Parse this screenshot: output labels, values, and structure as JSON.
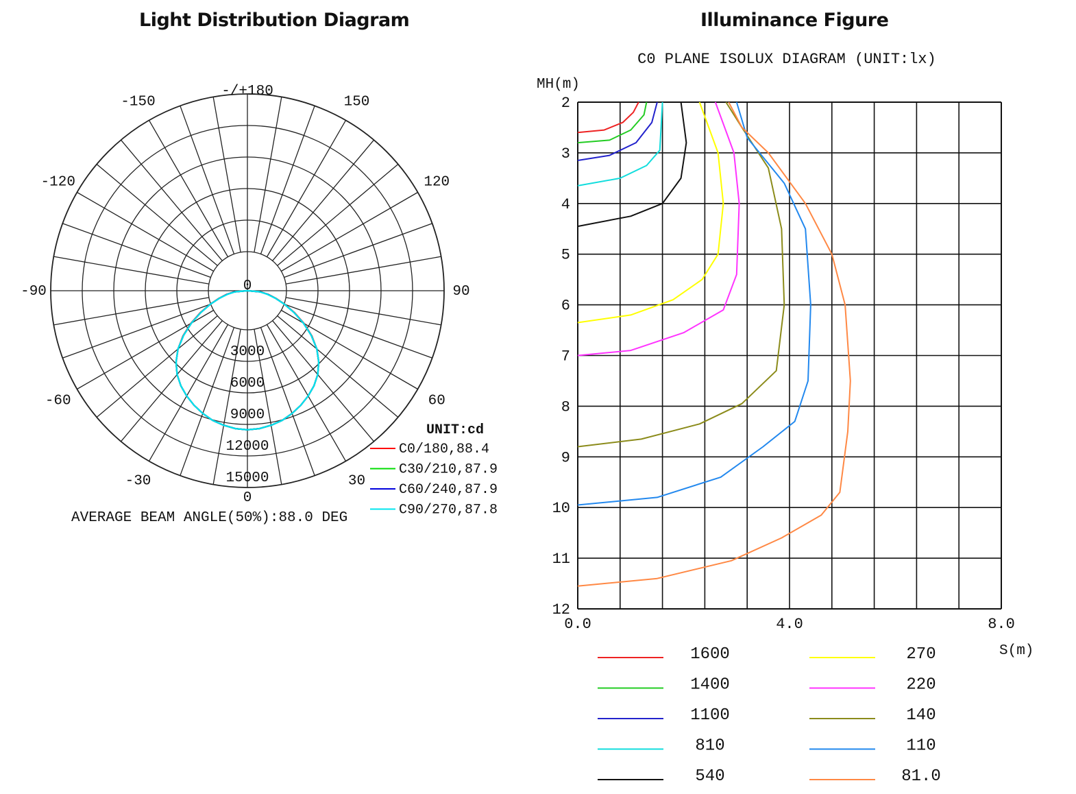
{
  "polar_panel": {
    "heading": "Light Distribution Diagram",
    "angle_labels": [
      "-/+180",
      "150",
      "120",
      "90",
      "60",
      "30",
      "0",
      "-30",
      "-60",
      "-90",
      "-120",
      "-150"
    ],
    "center_label": "0",
    "radial_labels": [
      "3000",
      "6000",
      "9000",
      "12000",
      "15000"
    ],
    "unit_label": "UNIT:cd",
    "footer": "AVERAGE BEAM ANGLE(50%):88.0 DEG"
  },
  "isolux_panel": {
    "heading": "Illuminance Figure",
    "plot_title": "C0 PLANE ISOLUX DIAGRAM (UNIT:lx)"
  },
  "chart_data": [
    {
      "type": "polar",
      "title": "Light Distribution Diagram",
      "unit": "UNIT:cd",
      "rlim": [
        0,
        15000
      ],
      "radial_ticks": [
        3000,
        6000,
        9000,
        12000,
        15000
      ],
      "angle_ticks": [
        "-/+180",
        "150",
        "120",
        "90",
        "60",
        "30",
        "0",
        "-30",
        "-60",
        "-90",
        "-120",
        "-150"
      ],
      "grid": true,
      "legend_position": "bottom-right",
      "angles_deg": [
        0,
        5,
        10,
        15,
        20,
        25,
        30,
        35,
        40,
        45,
        50,
        55,
        60,
        65,
        70,
        75,
        80,
        85,
        90
      ],
      "series": [
        {
          "name": "C0/180,88.4",
          "color": "#ff0000",
          "values": [
            11500,
            11450,
            11300,
            11100,
            10800,
            10450,
            10050,
            9600,
            9050,
            8350,
            7500,
            6500,
            5400,
            4300,
            3300,
            2450,
            1750,
            1100,
            0
          ]
        },
        {
          "name": "C30/210,87.9",
          "color": "#00dd00",
          "values": [
            11500,
            11450,
            11300,
            11100,
            10800,
            10450,
            10050,
            9600,
            9050,
            8350,
            7500,
            6450,
            5350,
            4250,
            3250,
            2400,
            1700,
            1050,
            0
          ]
        },
        {
          "name": "C60/240,87.9",
          "color": "#0000dd",
          "values": [
            11500,
            11450,
            11300,
            11100,
            10800,
            10450,
            10050,
            9600,
            9050,
            8350,
            7500,
            6450,
            5350,
            4250,
            3250,
            2400,
            1700,
            1050,
            0
          ]
        },
        {
          "name": "C90/270,87.8",
          "color": "#00e5ee",
          "values": [
            11500,
            11450,
            11300,
            11100,
            10800,
            10450,
            10050,
            9600,
            9050,
            8350,
            7500,
            6450,
            5350,
            4250,
            3250,
            2400,
            1650,
            1000,
            0
          ]
        }
      ],
      "footer": "AVERAGE BEAM ANGLE(50%):88.0 DEG"
    },
    {
      "type": "line",
      "title": "C0 PLANE ISOLUX DIAGRAM (UNIT:lx)",
      "xlabel": "S(m)",
      "ylabel": "MH(m)",
      "xlim": [
        0,
        8
      ],
      "ylim": [
        2,
        12
      ],
      "x_ticks": [
        "0.0",
        "4.0",
        "8.0"
      ],
      "y_ticks": [
        "2",
        "3",
        "4",
        "5",
        "6",
        "7",
        "8",
        "9",
        "10",
        "11",
        "12"
      ],
      "y_inverted": true,
      "grid": true,
      "legend_position": "bottom",
      "series": [
        {
          "name": "1600",
          "color": "#ee2222",
          "points": [
            [
              0,
              2.6
            ],
            [
              0.5,
              2.55
            ],
            [
              0.85,
              2.4
            ],
            [
              1.05,
              2.2
            ],
            [
              1.15,
              2.0
            ]
          ]
        },
        {
          "name": "1400",
          "color": "#22cc22",
          "points": [
            [
              0,
              2.8
            ],
            [
              0.6,
              2.75
            ],
            [
              1.0,
              2.55
            ],
            [
              1.25,
              2.25
            ],
            [
              1.3,
              2.0
            ]
          ]
        },
        {
          "name": "1100",
          "color": "#2222cc",
          "points": [
            [
              0,
              3.15
            ],
            [
              0.6,
              3.05
            ],
            [
              1.1,
              2.8
            ],
            [
              1.4,
              2.4
            ],
            [
              1.5,
              2.0
            ]
          ]
        },
        {
          "name": "810",
          "color": "#11dddd",
          "points": [
            [
              0,
              3.65
            ],
            [
              0.8,
              3.5
            ],
            [
              1.3,
              3.25
            ],
            [
              1.55,
              2.95
            ],
            [
              1.6,
              2.0
            ]
          ]
        },
        {
          "name": "540",
          "color": "#111111",
          "points": [
            [
              0,
              4.45
            ],
            [
              1.0,
              4.25
            ],
            [
              1.6,
              4.0
            ],
            [
              1.95,
              3.5
            ],
            [
              2.05,
              2.8
            ],
            [
              1.95,
              2.0
            ]
          ]
        },
        {
          "name": "270",
          "color": "#ffff00",
          "points": [
            [
              0,
              6.35
            ],
            [
              1.0,
              6.2
            ],
            [
              1.8,
              5.9
            ],
            [
              2.35,
              5.5
            ],
            [
              2.65,
              5.0
            ],
            [
              2.75,
              4.0
            ],
            [
              2.65,
              3.0
            ],
            [
              2.3,
              2.0
            ]
          ]
        },
        {
          "name": "220",
          "color": "#ff33ff",
          "points": [
            [
              0,
              7.0
            ],
            [
              1.0,
              6.9
            ],
            [
              2.0,
              6.55
            ],
            [
              2.75,
              6.1
            ],
            [
              3.0,
              5.4
            ],
            [
              3.05,
              4.0
            ],
            [
              2.95,
              3.0
            ],
            [
              2.6,
              2.0
            ]
          ]
        },
        {
          "name": "140",
          "color": "#8b8b1a",
          "points": [
            [
              0,
              8.8
            ],
            [
              1.2,
              8.65
            ],
            [
              2.3,
              8.35
            ],
            [
              3.1,
              7.95
            ],
            [
              3.75,
              7.3
            ],
            [
              3.9,
              6.0
            ],
            [
              3.85,
              4.5
            ],
            [
              3.6,
              3.3
            ],
            [
              3.1,
              2.5
            ],
            [
              2.8,
              2.0
            ]
          ]
        },
        {
          "name": "110",
          "color": "#2288ee",
          "points": [
            [
              0,
              9.95
            ],
            [
              1.5,
              9.8
            ],
            [
              2.7,
              9.4
            ],
            [
              3.5,
              8.8
            ],
            [
              4.1,
              8.3
            ],
            [
              4.35,
              7.5
            ],
            [
              4.4,
              6.0
            ],
            [
              4.3,
              4.5
            ],
            [
              3.9,
              3.6
            ],
            [
              3.2,
              2.7
            ],
            [
              3.0,
              2.0
            ]
          ]
        },
        {
          "name": "81.0",
          "color": "#ff8844",
          "points": [
            [
              0,
              11.55
            ],
            [
              1.5,
              11.4
            ],
            [
              2.9,
              11.05
            ],
            [
              3.85,
              10.6
            ],
            [
              4.6,
              10.15
            ],
            [
              4.95,
              9.7
            ],
            [
              5.1,
              8.5
            ],
            [
              5.15,
              7.5
            ],
            [
              5.05,
              6.0
            ],
            [
              4.8,
              5.0
            ],
            [
              4.3,
              4.0
            ],
            [
              3.6,
              3.0
            ],
            [
              3.1,
              2.5
            ],
            [
              2.85,
              2.0
            ]
          ]
        }
      ]
    }
  ]
}
